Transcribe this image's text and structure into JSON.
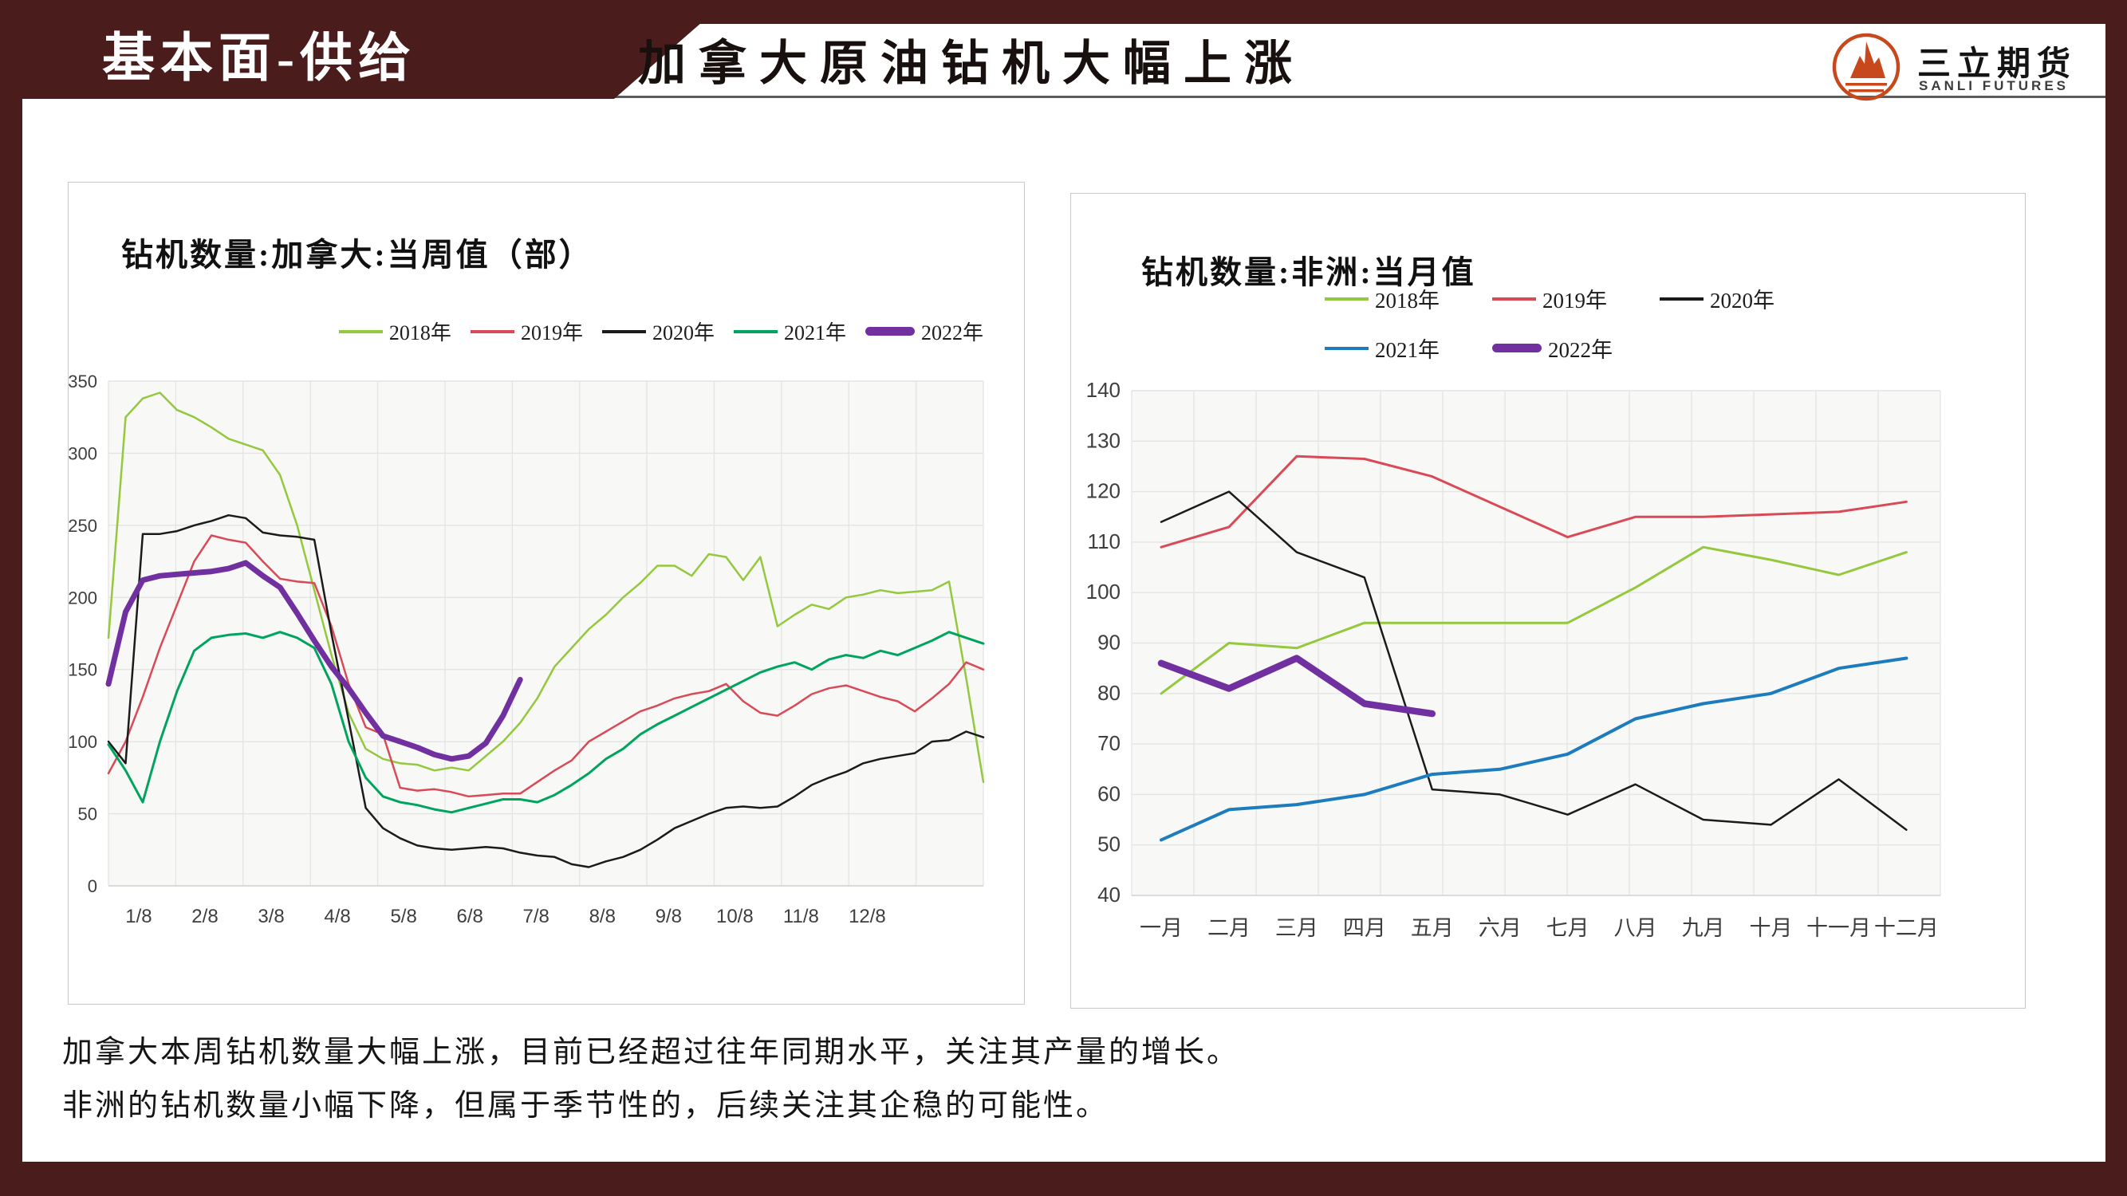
{
  "colors": {
    "maroon": "#4A1C1C",
    "logo_orange": "#C7481C",
    "grid": "#E4E4E4",
    "axis_line": "#CFCFCF",
    "axis_text": "#3E3E3E",
    "plot_bg": "#F8F8F7",
    "card_border": "#C9C9C9",
    "title_text": "#17100F",
    "note_text": "#151515"
  },
  "header": {
    "section_label": "基本面-供给",
    "title": "加拿大原油钻机大幅上涨",
    "logo_cn": "三立期货",
    "logo_en": "SANLI FUTURES"
  },
  "chart_data": [
    {
      "id": "canada",
      "type": "line",
      "title": "钻机数量:加拿大:当周值（部）",
      "xlabel": "",
      "ylabel": "",
      "ylim": [
        0,
        350
      ],
      "ystep": 50,
      "grid": true,
      "legend_position": "top-right-row",
      "points_total": 52,
      "x_labels": [
        "1/8",
        "2/8",
        "3/8",
        "4/8",
        "5/8",
        "6/8",
        "7/8",
        "8/8",
        "9/8",
        "10/8",
        "11/8",
        "12/8"
      ],
      "series": [
        {
          "name": "2018年",
          "color": "#94C83D",
          "width": 2.5,
          "values": [
            172,
            325,
            338,
            342,
            330,
            325,
            318,
            310,
            306,
            302,
            285,
            250,
            205,
            160,
            120,
            95,
            88,
            85,
            84,
            80,
            82,
            80,
            90,
            100,
            113,
            130,
            152,
            165,
            178,
            188,
            200,
            210,
            222,
            222,
            215,
            230,
            228,
            212,
            228,
            180,
            188,
            195,
            192,
            200,
            202,
            205,
            203,
            204,
            205,
            211,
            144,
            72
          ]
        },
        {
          "name": "2019年",
          "color": "#D94A56",
          "width": 2.5,
          "values": [
            78,
            100,
            131,
            165,
            195,
            225,
            243,
            240,
            238,
            225,
            213,
            211,
            210,
            180,
            140,
            110,
            105,
            68,
            66,
            67,
            65,
            62,
            63,
            64,
            64,
            72,
            80,
            87,
            100,
            107,
            114,
            121,
            125,
            130,
            133,
            135,
            140,
            128,
            120,
            118,
            125,
            133,
            137,
            139,
            135,
            131,
            128,
            121,
            130,
            140,
            155,
            150
          ]
        },
        {
          "name": "2020年",
          "color": "#1B1B1B",
          "width": 2.5,
          "values": [
            100,
            85,
            244,
            244,
            246,
            250,
            253,
            257,
            255,
            245,
            243,
            242,
            240,
            175,
            115,
            54,
            40,
            33,
            28,
            26,
            25,
            26,
            27,
            26,
            23,
            21,
            20,
            15,
            13,
            17,
            20,
            25,
            32,
            40,
            45,
            50,
            54,
            55,
            54,
            55,
            62,
            70,
            75,
            79,
            85,
            88,
            90,
            92,
            100,
            101,
            107,
            103
          ]
        },
        {
          "name": "2021年",
          "color": "#00A45E",
          "width": 3,
          "values": [
            98,
            80,
            58,
            100,
            135,
            163,
            172,
            174,
            175,
            172,
            176,
            172,
            165,
            140,
            100,
            75,
            62,
            58,
            56,
            53,
            51,
            54,
            57,
            60,
            60,
            58,
            63,
            70,
            78,
            88,
            95,
            105,
            112,
            118,
            124,
            130,
            136,
            142,
            148,
            152,
            155,
            150,
            157,
            160,
            158,
            163,
            160,
            165,
            170,
            176,
            172,
            168
          ]
        },
        {
          "name": "2022年",
          "color": "#7030A0",
          "width": 7,
          "values": [
            140,
            190,
            212,
            215,
            216,
            217,
            218,
            220,
            224,
            215,
            207,
            189,
            170,
            152,
            137,
            120,
            104,
            100,
            96,
            91,
            88,
            90,
            99,
            118,
            143
          ]
        }
      ]
    },
    {
      "id": "africa",
      "type": "line",
      "title": "钻机数量:非洲:当月值",
      "xlabel": "",
      "ylabel": "",
      "ylim": [
        40,
        140
      ],
      "ystep": 10,
      "grid": true,
      "legend_position": "top-right-two-rows",
      "points_total": 12,
      "x_labels": [
        "一月",
        "二月",
        "三月",
        "四月",
        "五月",
        "六月",
        "七月",
        "八月",
        "九月",
        "十月",
        "十一月",
        "十二月"
      ],
      "series": [
        {
          "name": "2018年",
          "color": "#94C83D",
          "width": 3,
          "values": [
            80,
            90,
            89,
            94,
            94,
            94,
            94,
            101,
            109,
            106.5,
            103.5,
            108
          ]
        },
        {
          "name": "2019年",
          "color": "#D94A56",
          "width": 3,
          "values": [
            109,
            113,
            127,
            126.5,
            123,
            117,
            111,
            115,
            115,
            115.5,
            116,
            118
          ]
        },
        {
          "name": "2020年",
          "color": "#1B1B1B",
          "width": 2.5,
          "values": [
            114,
            120,
            108,
            103,
            61,
            60,
            56,
            62,
            55,
            54,
            63,
            53
          ]
        },
        {
          "name": "2021年",
          "color": "#1C7CBE",
          "width": 4,
          "values": [
            51,
            57,
            58,
            60,
            64,
            65,
            68,
            75,
            78,
            80,
            85,
            87
          ]
        },
        {
          "name": "2022年",
          "color": "#7030A0",
          "width": 8.5,
          "values": [
            86,
            81,
            87,
            78,
            76
          ]
        }
      ]
    }
  ],
  "notes": [
    "加拿大本周钻机数量大幅上涨，目前已经超过往年同期水平，关注其产量的增长。",
    "非洲的钻机数量小幅下降，但属于季节性的，后续关注其企稳的可能性。"
  ]
}
